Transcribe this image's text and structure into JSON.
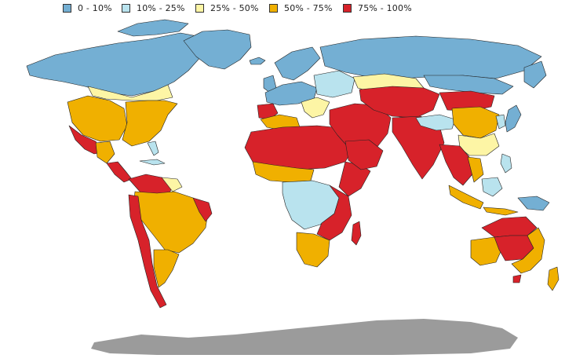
{
  "legend": {
    "items": [
      {
        "label": "0 - 10%",
        "color": "#74afd3"
      },
      {
        "label": "10% - 25%",
        "color": "#b9e3ee"
      },
      {
        "label": "25% - 50%",
        "color": "#fdf5a5"
      },
      {
        "label": "50% - 75%",
        "color": "#f0b000"
      },
      {
        "label": "75% - 100%",
        "color": "#d7222a"
      }
    ]
  },
  "colors": {
    "antarctica": "#9b9b9b",
    "ocean": "#ffffff",
    "border": "#222222"
  }
}
